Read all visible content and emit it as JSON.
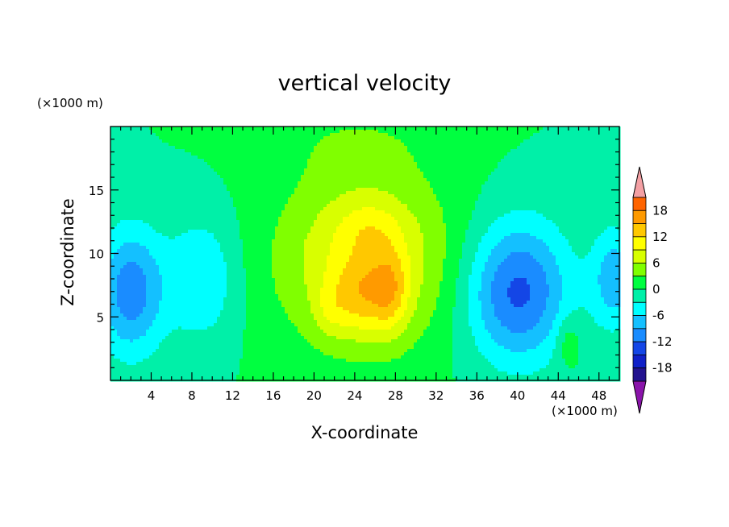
{
  "chart_data": {
    "type": "heatmap",
    "title": "vertical velocity",
    "xlabel": "X-coordinate",
    "ylabel": "Z-coordinate",
    "x_unit_label": "(×1000 m)",
    "y_unit_label": "(×1000 m)",
    "xlim": [
      0,
      50
    ],
    "ylim": [
      0,
      20
    ],
    "x_ticks": [
      4,
      8,
      12,
      16,
      20,
      24,
      28,
      32,
      36,
      40,
      44,
      48
    ],
    "y_ticks": [
      5,
      10,
      15
    ],
    "colorbar": {
      "levels": [
        -21,
        -18,
        -15,
        -12,
        -9,
        -6,
        -3,
        0,
        3,
        6,
        9,
        12,
        15,
        18,
        21
      ],
      "labels": [
        18,
        12,
        6,
        0,
        -6,
        -12,
        -18
      ],
      "colors": [
        "#5a1a9a",
        "#23138f",
        "#1020c8",
        "#1446e6",
        "#1a8cff",
        "#14c0ff",
        "#00ffff",
        "#00f0a8",
        "#00ff40",
        "#80ff00",
        "#d8ff00",
        "#ffff00",
        "#ffc800",
        "#ff9a00",
        "#ff6400",
        "#ff2a14"
      ],
      "over_color": "#f4a0a4",
      "under_color": "#8a14aa"
    },
    "grid": false
  }
}
